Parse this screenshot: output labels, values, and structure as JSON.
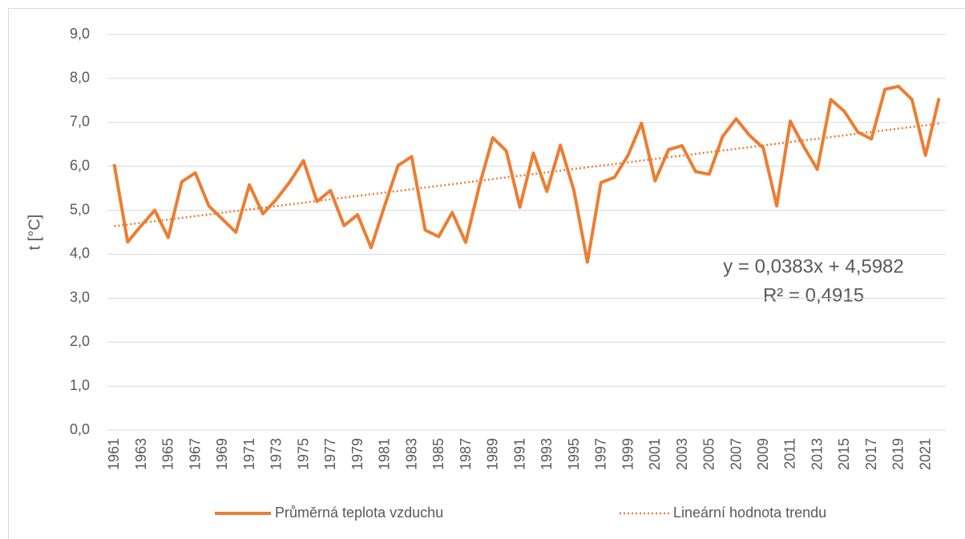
{
  "chart_data": {
    "type": "line",
    "y_label": "t [°C]",
    "categories": [
      "1961",
      null,
      "1963",
      null,
      "1965",
      null,
      "1967",
      null,
      "1969",
      null,
      "1971",
      null,
      "1973",
      null,
      "1975",
      null,
      "1977",
      null,
      "1979",
      null,
      "1981",
      null,
      "1983",
      null,
      "1985",
      null,
      "1987",
      null,
      "1989",
      null,
      "1991",
      null,
      "1993",
      null,
      "1995",
      null,
      "1997",
      null,
      "1999",
      null,
      "2001",
      null,
      "2003",
      null,
      "2005",
      null,
      "2007",
      null,
      "2009",
      null,
      "2011",
      null,
      "2013",
      null,
      "2015",
      null,
      "2017",
      null,
      "2019",
      null,
      "2021",
      null
    ],
    "series": [
      {
        "name": "Průměrná teplota vzduchu",
        "color": "#ed7d31",
        "values": [
          6.05,
          4.28,
          4.65,
          5.0,
          4.38,
          5.65,
          5.85,
          5.1,
          4.8,
          4.5,
          5.58,
          4.92,
          5.25,
          5.65,
          6.13,
          5.2,
          5.45,
          4.65,
          4.9,
          4.15,
          5.1,
          6.02,
          6.22,
          4.55,
          4.4,
          4.95,
          4.27,
          5.55,
          6.65,
          6.35,
          5.07,
          6.3,
          5.43,
          6.48,
          5.45,
          3.82,
          5.63,
          5.75,
          6.25,
          6.98,
          5.67,
          6.38,
          6.47,
          5.88,
          5.82,
          6.68,
          7.08,
          6.7,
          6.42,
          5.1,
          7.03,
          6.45,
          5.93,
          7.52,
          7.25,
          6.78,
          6.62,
          7.75,
          7.82,
          7.52,
          6.25,
          7.55
        ]
      }
    ],
    "trend": {
      "name": "Lineární hodnota trendu",
      "color": "#ed7d31",
      "slope": 0.0383,
      "intercept": 4.5982,
      "equation": "y = 0,0383x + 4,5982",
      "r_squared": "R² = 0,4915"
    },
    "ylim": [
      0,
      9
    ],
    "yticks": [
      {
        "value": 0,
        "label": "0,0"
      },
      {
        "value": 1,
        "label": "1,0"
      },
      {
        "value": 2,
        "label": "2,0"
      },
      {
        "value": 3,
        "label": "3,0"
      },
      {
        "value": 4,
        "label": "4,0"
      },
      {
        "value": 5,
        "label": "5,0"
      },
      {
        "value": 6,
        "label": "6,0"
      },
      {
        "value": 7,
        "label": "7,0"
      },
      {
        "value": 8,
        "label": "8,0"
      },
      {
        "value": 9,
        "label": "9,0"
      }
    ],
    "grid": true,
    "legend": "bottom"
  }
}
